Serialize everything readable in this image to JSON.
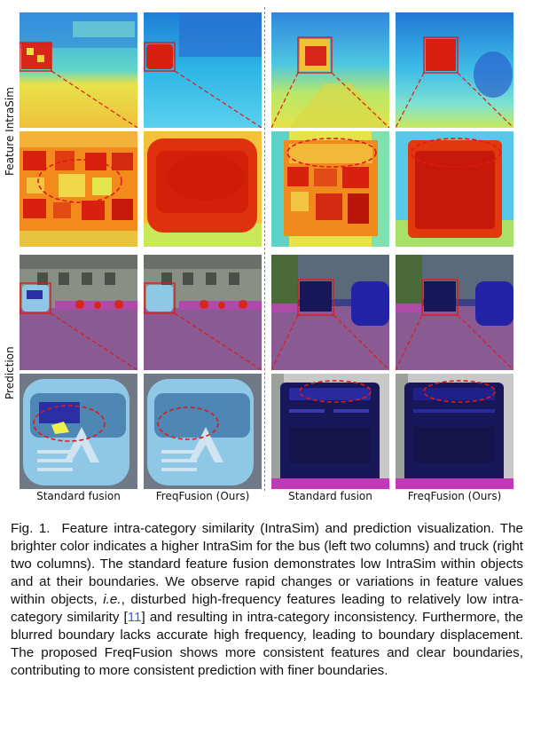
{
  "row_labels": {
    "top": "Feature IntraSim",
    "bottom": "Prediction"
  },
  "column_labels": [
    "Standard fusion",
    "FreqFusion (Ours)",
    "Standard fusion",
    "FreqFusion (Ours)"
  ],
  "colors": {
    "jet_red": "#d1150a",
    "jet_orange": "#f47a16",
    "jet_yellow": "#e8e642",
    "jet_cyan": "#38c9e8",
    "jet_blue": "#1b6fd6",
    "road_purple": "#8a5a93",
    "truck_navy": "#17175a",
    "bus_lightblue": "#8fc7e6",
    "ellipse_red": "#e01919"
  },
  "caption": {
    "prefix": "Fig. 1.",
    "part1": "Feature intra-category similarity (IntraSim) and prediction visualization. The brighter color indicates a higher IntraSim for the bus (left two columns) and truck (right two columns). The standard feature fusion demonstrates low IntraSim within objects and at their boundaries. We observe rapid changes or variations in feature values within objects,",
    "ie": "i.e.",
    "part2": ", disturbed high-frequency features leading to relatively low intra-category similarity [",
    "cite": "11",
    "part3": "] and resulting in intra-category inconsistency. Furthermore, the blurred boundary lacks accurate high frequency, leading to boundary displacement. The proposed FreqFusion shows more consistent features and clear boundaries, contributing to more consistent prediction with finer boundaries."
  }
}
